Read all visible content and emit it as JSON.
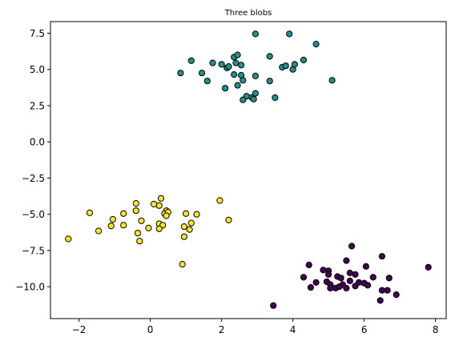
{
  "chart_data": {
    "type": "scatter",
    "title": "Three blobs",
    "xlabel": "",
    "ylabel": "",
    "xlim": [
      -2.8,
      8.3
    ],
    "ylim": [
      -12.2,
      8.3
    ],
    "x_ticks": [
      -2,
      0,
      2,
      4,
      6,
      8
    ],
    "x_tick_labels": [
      "−2",
      "0",
      "2",
      "4",
      "6",
      "8"
    ],
    "y_ticks": [
      -10.0,
      -7.5,
      -5.0,
      -2.5,
      0.0,
      2.5,
      5.0,
      7.5
    ],
    "y_tick_labels": [
      "−10.0",
      "−7.5",
      "−5.0",
      "−2.5",
      "0.0",
      "2.5",
      "5.0",
      "7.5"
    ],
    "grid": false,
    "legend": "none",
    "series": [
      {
        "color": "#21918c",
        "points": [
          [
            2.95,
            7.45
          ],
          [
            3.9,
            7.45
          ],
          [
            4.65,
            6.75
          ],
          [
            1.15,
            5.6
          ],
          [
            2.35,
            5.85
          ],
          [
            2.45,
            6.0
          ],
          [
            3.35,
            5.9
          ],
          [
            1.75,
            5.45
          ],
          [
            2.0,
            5.35
          ],
          [
            2.15,
            5.1
          ],
          [
            2.2,
            5.2
          ],
          [
            2.4,
            5.45
          ],
          [
            2.55,
            5.3
          ],
          [
            3.7,
            5.15
          ],
          [
            3.8,
            5.25
          ],
          [
            4.0,
            5.0
          ],
          [
            4.05,
            5.35
          ],
          [
            4.3,
            5.65
          ],
          [
            0.85,
            4.75
          ],
          [
            1.45,
            4.75
          ],
          [
            2.35,
            4.65
          ],
          [
            2.55,
            4.6
          ],
          [
            2.95,
            4.55
          ],
          [
            1.6,
            4.2
          ],
          [
            2.6,
            4.25
          ],
          [
            3.35,
            4.2
          ],
          [
            5.1,
            4.25
          ],
          [
            2.45,
            3.9
          ],
          [
            2.1,
            3.7
          ],
          [
            2.85,
            3.05
          ],
          [
            2.7,
            3.15
          ],
          [
            2.95,
            3.35
          ],
          [
            3.5,
            3.05
          ],
          [
            2.6,
            2.9
          ],
          [
            2.9,
            2.95
          ]
        ]
      },
      {
        "color": "#fde725",
        "points": [
          [
            0.3,
            -3.9
          ],
          [
            1.95,
            -4.05
          ],
          [
            -0.4,
            -4.25
          ],
          [
            0.25,
            -4.4
          ],
          [
            -0.4,
            -4.75
          ],
          [
            0.45,
            -4.75
          ],
          [
            -1.7,
            -4.9
          ],
          [
            -0.75,
            -4.95
          ],
          [
            0.4,
            -4.95
          ],
          [
            0.5,
            -4.85
          ],
          [
            1.0,
            -4.95
          ],
          [
            1.3,
            -5.0
          ],
          [
            -1.05,
            -5.35
          ],
          [
            -0.25,
            -5.45
          ],
          [
            2.2,
            -5.4
          ],
          [
            1.15,
            -5.6
          ],
          [
            -1.1,
            -5.8
          ],
          [
            -0.75,
            -5.75
          ],
          [
            0.25,
            -5.65
          ],
          [
            0.35,
            -5.75
          ],
          [
            0.95,
            -5.85
          ],
          [
            -1.45,
            -6.15
          ],
          [
            -0.35,
            -6.3
          ],
          [
            0.25,
            -6.0
          ],
          [
            1.1,
            -6.05
          ],
          [
            0.1,
            -4.3
          ],
          [
            -2.3,
            -6.7
          ],
          [
            -0.3,
            -6.85
          ],
          [
            0.95,
            -6.55
          ],
          [
            0.9,
            -8.45
          ],
          [
            0.45,
            -5.1
          ],
          [
            -0.05,
            -5.95
          ]
        ]
      },
      {
        "color": "#440154",
        "points": [
          [
            5.65,
            -7.2
          ],
          [
            6.5,
            -7.9
          ],
          [
            5.5,
            -8.2
          ],
          [
            4.45,
            -8.5
          ],
          [
            6.05,
            -8.6
          ],
          [
            7.8,
            -8.65
          ],
          [
            4.85,
            -8.85
          ],
          [
            5.0,
            -8.9
          ],
          [
            5.25,
            -9.3
          ],
          [
            4.3,
            -9.35
          ],
          [
            5.0,
            -9.15
          ],
          [
            5.35,
            -9.4
          ],
          [
            5.6,
            -9.05
          ],
          [
            5.75,
            -9.15
          ],
          [
            6.25,
            -9.35
          ],
          [
            6.7,
            -9.4
          ],
          [
            4.65,
            -9.7
          ],
          [
            4.95,
            -9.65
          ],
          [
            5.05,
            -9.85
          ],
          [
            5.4,
            -9.85
          ],
          [
            5.6,
            -9.6
          ],
          [
            5.85,
            -9.7
          ],
          [
            6.0,
            -9.75
          ],
          [
            6.1,
            -9.9
          ],
          [
            4.5,
            -10.05
          ],
          [
            5.05,
            -10.1
          ],
          [
            5.2,
            -10.1
          ],
          [
            5.3,
            -10.0
          ],
          [
            5.5,
            -10.1
          ],
          [
            6.5,
            -10.25
          ],
          [
            6.65,
            -10.25
          ],
          [
            6.9,
            -10.55
          ],
          [
            6.45,
            -10.95
          ],
          [
            3.45,
            -11.3
          ],
          [
            5.75,
            -9.95
          ]
        ]
      }
    ]
  }
}
